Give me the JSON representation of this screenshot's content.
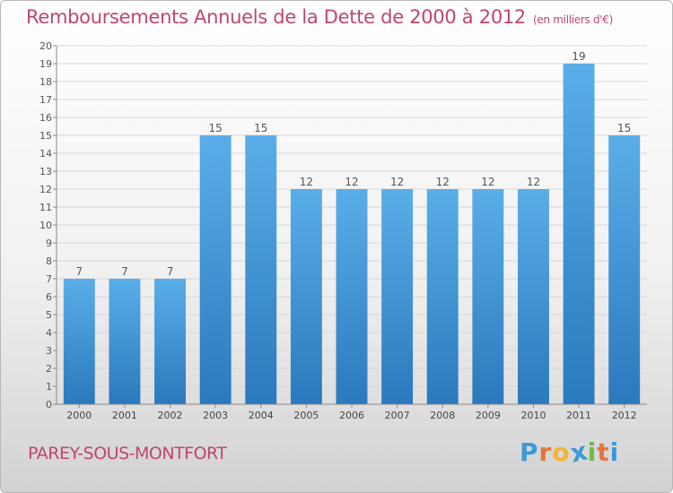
{
  "title": "Remboursements Annuels de la Dette de 2000 à 2012",
  "subtitle": "(en milliers d'€)",
  "commune": "PAREY-SOUS-MONTFORT",
  "logo": {
    "letters": [
      "P",
      "r",
      "o",
      "x",
      "i",
      "t",
      "i"
    ],
    "colors": [
      "#3a9ad9",
      "#e8743b",
      "#f2b632",
      "#3a9ad9",
      "#6dbb45",
      "#e8743b",
      "#3a9ad9"
    ]
  },
  "chart_data": {
    "type": "bar",
    "title": "Remboursements Annuels de la Dette de 2000 à 2012",
    "categories": [
      "2000",
      "2001",
      "2002",
      "2003",
      "2004",
      "2005",
      "2006",
      "2007",
      "2008",
      "2009",
      "2010",
      "2011",
      "2012"
    ],
    "values": [
      7,
      7,
      7,
      15,
      15,
      12,
      12,
      12,
      12,
      12,
      12,
      19,
      15
    ],
    "ylim": [
      0,
      20
    ],
    "yticks": [
      0,
      1,
      2,
      3,
      4,
      5,
      6,
      7,
      8,
      9,
      10,
      11,
      12,
      13,
      14,
      15,
      16,
      17,
      18,
      19,
      20
    ],
    "grid": true,
    "bar_color_top": "#5aaee8",
    "bar_color_bottom": "#2a79bd"
  }
}
